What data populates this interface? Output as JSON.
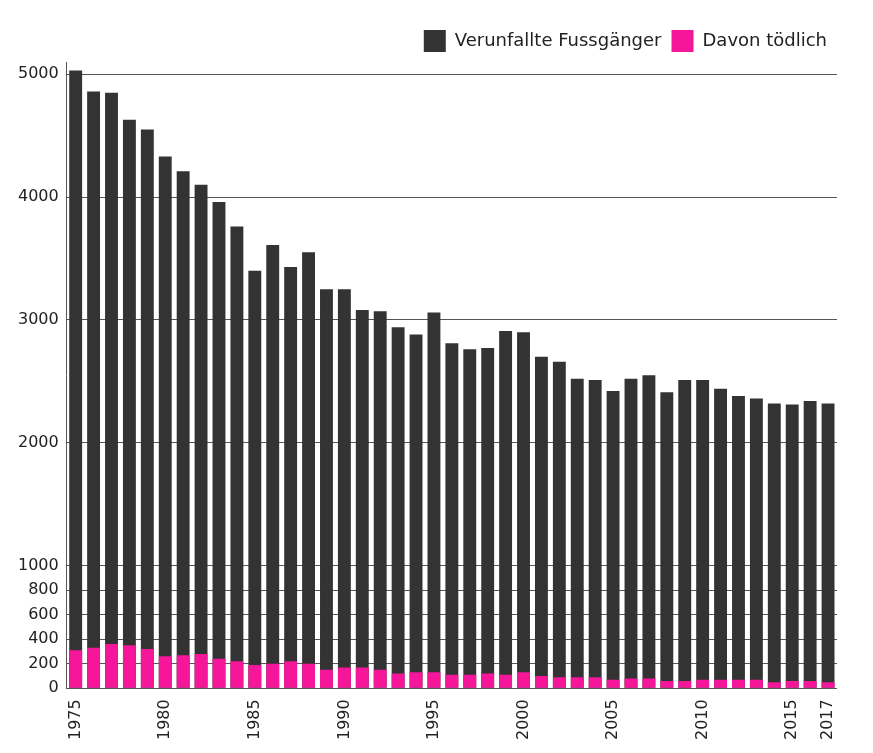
{
  "chart_data": {
    "type": "bar",
    "categories": [
      "1975",
      null,
      null,
      null,
      null,
      "1980",
      null,
      null,
      null,
      null,
      "1985",
      null,
      null,
      null,
      null,
      "1990",
      null,
      null,
      null,
      null,
      "1995",
      null,
      null,
      null,
      null,
      "2000",
      null,
      null,
      null,
      null,
      "2005",
      null,
      null,
      null,
      null,
      "2010",
      null,
      null,
      null,
      null,
      "2015",
      null,
      "2017"
    ],
    "series": [
      {
        "name": "Verunfallte Fussgänger",
        "color": "#333333",
        "values": [
          5030,
          4860,
          4850,
          4630,
          4550,
          4330,
          4210,
          4100,
          3960,
          3760,
          3400,
          3610,
          3430,
          3550,
          3250,
          3250,
          3080,
          3070,
          2940,
          2880,
          3060,
          2810,
          2760,
          2770,
          2910,
          2900,
          2700,
          2660,
          2520,
          2510,
          2420,
          2520,
          2550,
          2410,
          2510,
          2510,
          2440,
          2380,
          2360,
          2320,
          2310,
          2340,
          2320
        ]
      },
      {
        "name": "Davon tödlich",
        "color": "#f5169a",
        "values": [
          310,
          330,
          360,
          350,
          320,
          260,
          270,
          280,
          240,
          220,
          190,
          200,
          220,
          200,
          150,
          170,
          170,
          150,
          120,
          130,
          130,
          110,
          110,
          120,
          110,
          130,
          100,
          90,
          90,
          90,
          70,
          80,
          80,
          60,
          60,
          70,
          70,
          70,
          70,
          50,
          60,
          60,
          50
        ]
      }
    ],
    "ylim": [
      0,
      5100
    ],
    "yticks": [
      0,
      200,
      400,
      600,
      800,
      1000,
      2000,
      3000,
      4000,
      5000
    ],
    "grid": true,
    "legend": "top-right"
  }
}
